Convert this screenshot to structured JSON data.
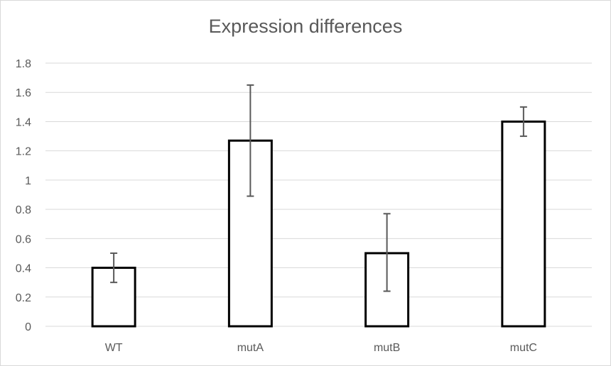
{
  "chart_data": {
    "type": "bar",
    "title": "Expression differences",
    "xlabel": "",
    "ylabel": "",
    "categories": [
      "WT",
      "mutA",
      "mutB",
      "mutC"
    ],
    "values": [
      0.4,
      1.27,
      0.5,
      1.4
    ],
    "error_low": [
      0.3,
      0.89,
      0.24,
      1.3
    ],
    "error_high": [
      0.5,
      1.65,
      0.77,
      1.5
    ],
    "ylim": [
      0,
      1.8
    ],
    "yticks": [
      "0",
      "0.2",
      "0.4",
      "0.6",
      "0.8",
      "1",
      "1.2",
      "1.4",
      "1.6",
      "1.8"
    ],
    "grid": true,
    "legend": "none",
    "colors": {
      "bar_fill": "#ffffff",
      "bar_stroke": "#000000",
      "grid": "#d9d9d9",
      "error": "#595959",
      "text": "#595959"
    }
  }
}
